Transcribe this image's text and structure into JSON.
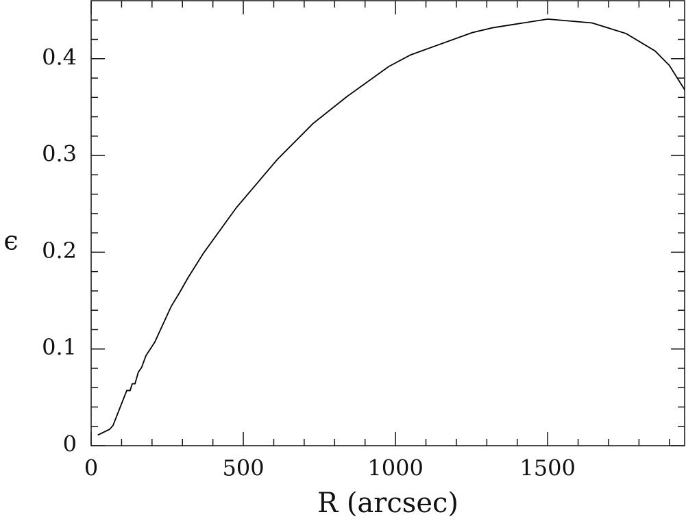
{
  "chart_data": {
    "type": "line",
    "xlabel": "R (arcsec)",
    "ylabel": "ϵ",
    "series": [
      {
        "color": "#000000",
        "x": [
          22,
          61,
          72,
          117,
          128,
          135,
          144,
          155,
          166,
          180,
          209,
          263,
          290,
          319,
          369,
          477,
          612,
          729,
          841,
          978,
          1050,
          1252,
          1319,
          1500,
          1646,
          1758,
          1853,
          1900,
          1950
        ],
        "values": [
          0.011,
          0.017,
          0.021,
          0.057,
          0.057,
          0.064,
          0.064,
          0.076,
          0.081,
          0.093,
          0.107,
          0.144,
          0.158,
          0.174,
          0.199,
          0.246,
          0.296,
          0.333,
          0.361,
          0.392,
          0.404,
          0.427,
          0.432,
          0.441,
          0.437,
          0.426,
          0.408,
          0.393,
          0.368
        ]
      }
    ],
    "xlim": [
      0,
      1950
    ],
    "ylim": [
      0,
      0.46
    ],
    "xticks": [
      0,
      500,
      1000,
      1500
    ],
    "yticks": [
      0,
      0.1,
      0.2,
      0.3,
      0.4
    ],
    "xminor": [
      100,
      200,
      300,
      400,
      600,
      700,
      800,
      900,
      1100,
      1200,
      1300,
      1400,
      1600,
      1700,
      1800,
      1900
    ],
    "yminor": [
      0.02,
      0.04,
      0.06,
      0.08,
      0.12,
      0.14,
      0.16,
      0.18,
      0.22,
      0.24,
      0.26,
      0.28,
      0.32,
      0.34,
      0.36,
      0.38,
      0.42,
      0.44
    ]
  }
}
